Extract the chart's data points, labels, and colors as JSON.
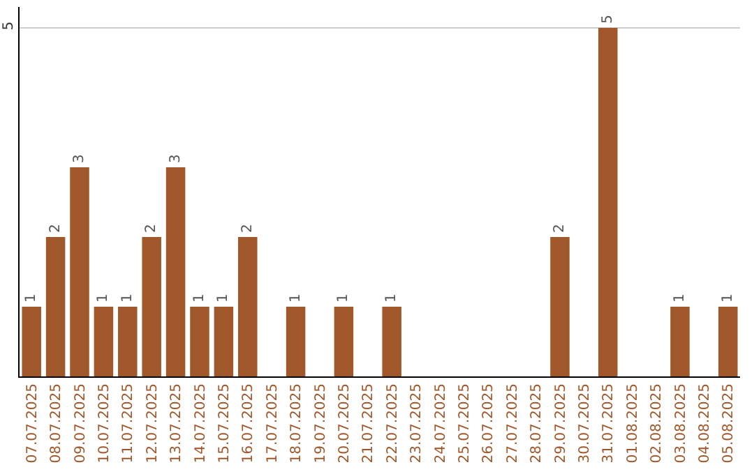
{
  "chart_data": {
    "type": "bar",
    "categories": [
      "07.07.2025",
      "08.07.2025",
      "09.07.2025",
      "10.07.2025",
      "11.07.2025",
      "12.07.2025",
      "13.07.2025",
      "14.07.2025",
      "15.07.2025",
      "16.07.2025",
      "17.07.2025",
      "18.07.2025",
      "19.07.2025",
      "20.07.2025",
      "21.07.2025",
      "22.07.2025",
      "23.07.2025",
      "24.07.2025",
      "25.07.2025",
      "26.07.2025",
      "27.07.2025",
      "28.07.2025",
      "29.07.2025",
      "30.07.2025",
      "31.07.2025",
      "01.08.2025",
      "02.08.2025",
      "03.08.2025",
      "04.08.2025",
      "05.08.2025"
    ],
    "values": [
      1,
      2,
      3,
      1,
      1,
      2,
      3,
      1,
      1,
      2,
      0,
      1,
      0,
      1,
      0,
      1,
      0,
      0,
      0,
      0,
      0,
      0,
      2,
      0,
      5,
      0,
      0,
      1,
      0,
      1
    ],
    "value_labels": [
      "1",
      "2",
      "3",
      "1",
      "1",
      "2",
      "3",
      "1",
      "1",
      "2",
      null,
      "1",
      null,
      "1",
      null,
      "1",
      null,
      null,
      null,
      null,
      null,
      null,
      "2",
      null,
      "5",
      null,
      null,
      "1",
      null,
      "1"
    ],
    "color": "#a0582a",
    "ylim": [
      0,
      5.3
    ],
    "yticks": [
      5
    ],
    "grid": "y"
  }
}
